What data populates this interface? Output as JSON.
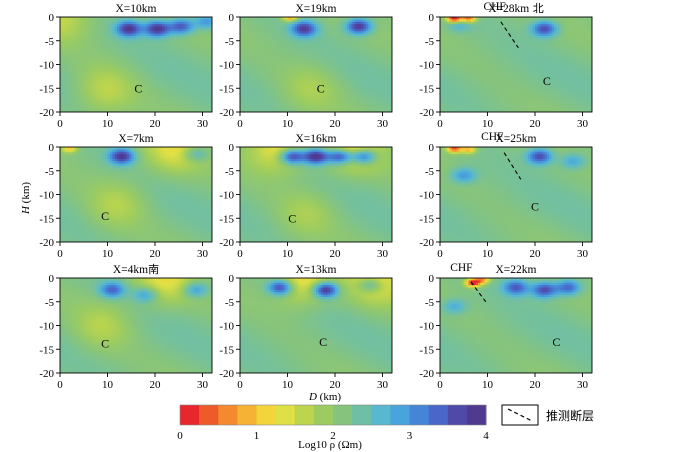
{
  "figure": {
    "ylabel_var": "H",
    "ylabel_unit": " (km)",
    "xlabel_var": "D",
    "xlabel_unit": " (km)"
  },
  "chart_data": [
    {
      "type": "heatmap",
      "title": "X=10km",
      "xlim": [
        0,
        32
      ],
      "ylim": [
        -20,
        0
      ],
      "x_ticks": [
        0,
        10,
        20,
        30
      ],
      "y_ticks": [
        0,
        -5,
        -10,
        -15,
        -20
      ],
      "zone_labels": [
        {
          "text": "C",
          "x": 16.5,
          "y": -15
        }
      ],
      "fault": null,
      "lows": [
        {
          "x": 14.5,
          "y": -2.5,
          "a": 1.8
        },
        {
          "x": 20.5,
          "y": -2.5,
          "a": 1.9
        },
        {
          "x": 25.5,
          "y": -2.0,
          "a": 1.5
        },
        {
          "x": 30.8,
          "y": -1.0,
          "a": 0.9
        }
      ],
      "highs": [
        {
          "x": 9.5,
          "y": -15.5,
          "a": 0.6
        },
        {
          "x": 0.5,
          "y": 0,
          "a": 0.6
        }
      ]
    },
    {
      "type": "heatmap",
      "title": "X=19km",
      "xlim": [
        0,
        32
      ],
      "ylim": [
        -20,
        0
      ],
      "x_ticks": [
        0,
        10,
        20,
        30
      ],
      "y_ticks": [
        0,
        -5,
        -10,
        -15,
        -20
      ],
      "zone_labels": [
        {
          "text": "C",
          "x": 17,
          "y": -15
        }
      ],
      "fault": null,
      "lows": [
        {
          "x": 13.5,
          "y": -2.5,
          "a": 1.7
        },
        {
          "x": 25,
          "y": -2.0,
          "a": 1.9
        }
      ],
      "highs": [
        {
          "x": 10.5,
          "y": 0,
          "a": 1.6
        },
        {
          "x": 15,
          "y": -15,
          "a": 0.4
        }
      ]
    },
    {
      "type": "heatmap",
      "title": "X=28km",
      "title_suffix": " 北",
      "xlim": [
        0,
        32
      ],
      "ylim": [
        -20,
        0
      ],
      "x_ticks": [
        0,
        10,
        20,
        30
      ],
      "y_ticks": [
        0,
        -5,
        -10,
        -15,
        -20
      ],
      "zone_labels": [
        {
          "text": "C",
          "x": 22.5,
          "y": -13.5
        }
      ],
      "fault": {
        "label": "CHF",
        "x1": 12.8,
        "y1": -1.0,
        "x2": 16.5,
        "y2": -6.5,
        "label_x": 11.5,
        "label_y": 1.5
      },
      "lows": [
        {
          "x": 22,
          "y": -2.5,
          "a": 1.6
        },
        {
          "x": 4,
          "y": -1.5,
          "a": 0.6
        }
      ],
      "highs": [
        {
          "x": 3,
          "y": -0.3,
          "a": 2.6
        },
        {
          "x": 6,
          "y": -0.3,
          "a": 2.0
        }
      ]
    },
    {
      "type": "heatmap",
      "title": "X=7km",
      "xlim": [
        0,
        32
      ],
      "ylim": [
        -20,
        0
      ],
      "x_ticks": [
        0,
        10,
        20,
        30
      ],
      "y_ticks": [
        0,
        -5,
        -10,
        -15,
        -20
      ],
      "zone_labels": [
        {
          "text": "C",
          "x": 9.5,
          "y": -14.5
        }
      ],
      "fault": null,
      "lows": [
        {
          "x": 13,
          "y": -2.0,
          "a": 1.8
        },
        {
          "x": 28.5,
          "y": -1.5,
          "a": 0.8
        }
      ],
      "highs": [
        {
          "x": 2,
          "y": -0.3,
          "a": 1.2
        },
        {
          "x": 24,
          "y": -0.3,
          "a": 0.8
        },
        {
          "x": 12,
          "y": -12,
          "a": 0.5
        }
      ]
    },
    {
      "type": "heatmap",
      "title": "X=16km",
      "xlim": [
        0,
        32
      ],
      "ylim": [
        -20,
        0
      ],
      "x_ticks": [
        0,
        10,
        20,
        30
      ],
      "y_ticks": [
        0,
        -5,
        -10,
        -15,
        -20
      ],
      "zone_labels": [
        {
          "text": "C",
          "x": 11,
          "y": -15
        }
      ],
      "fault": null,
      "lows": [
        {
          "x": 11,
          "y": -2.0,
          "a": 1.9
        },
        {
          "x": 16,
          "y": -2.0,
          "a": 2.1
        },
        {
          "x": 21,
          "y": -2.0,
          "a": 1.9
        },
        {
          "x": 26,
          "y": -2.0,
          "a": 1.7
        }
      ],
      "highs": [
        {
          "x": 8,
          "y": 0,
          "a": 1.0
        },
        {
          "x": 24,
          "y": 0,
          "a": 1.0
        },
        {
          "x": 14,
          "y": -14,
          "a": 0.4
        }
      ]
    },
    {
      "type": "heatmap",
      "title": "X=25km",
      "xlim": [
        0,
        32
      ],
      "ylim": [
        -20,
        0
      ],
      "x_ticks": [
        0,
        10,
        20,
        30
      ],
      "y_ticks": [
        0,
        -5,
        -10,
        -15,
        -20
      ],
      "zone_labels": [
        {
          "text": "C",
          "x": 20,
          "y": -12.5
        }
      ],
      "fault": {
        "label": "CHF",
        "x1": 13.5,
        "y1": -1.2,
        "x2": 17,
        "y2": -6.8,
        "label_x": 11,
        "label_y": 1.5
      },
      "lows": [
        {
          "x": 21,
          "y": -2.0,
          "a": 1.6
        },
        {
          "x": 5,
          "y": -6,
          "a": 0.9
        },
        {
          "x": 28,
          "y": -3,
          "a": 0.8
        }
      ],
      "highs": [
        {
          "x": 3,
          "y": -0.3,
          "a": 2.0
        },
        {
          "x": 6,
          "y": -0.5,
          "a": 1.4
        }
      ]
    },
    {
      "type": "heatmap",
      "title": "X=4km",
      "title_suffix": "南",
      "xlim": [
        0,
        32
      ],
      "ylim": [
        -20,
        0
      ],
      "x_ticks": [
        0,
        10,
        20,
        30
      ],
      "y_ticks": [
        0,
        -5,
        -10,
        -15,
        -20
      ],
      "zone_labels": [
        {
          "text": "C",
          "x": 9.5,
          "y": -13.8
        }
      ],
      "fault": null,
      "lows": [
        {
          "x": 11,
          "y": -2.5,
          "a": 1.3
        },
        {
          "x": 18,
          "y": -3.5,
          "a": 0.9
        },
        {
          "x": 28.5,
          "y": -2.5,
          "a": 1.0
        }
      ],
      "highs": [
        {
          "x": 9,
          "y": -10,
          "a": 0.5
        },
        {
          "x": 22,
          "y": -0.3,
          "a": 0.8
        }
      ]
    },
    {
      "type": "heatmap",
      "title": "X=13km",
      "xlim": [
        0,
        32
      ],
      "ylim": [
        -20,
        0
      ],
      "x_ticks": [
        0,
        10,
        20,
        30
      ],
      "y_ticks": [
        0,
        -5,
        -10,
        -15,
        -20
      ],
      "zone_labels": [
        {
          "text": "C",
          "x": 17.5,
          "y": -13.5
        }
      ],
      "fault": null,
      "lows": [
        {
          "x": 8.5,
          "y": -2.0,
          "a": 1.8
        },
        {
          "x": 18,
          "y": -2.5,
          "a": 2.1
        },
        {
          "x": 27.5,
          "y": -1.5,
          "a": 1.0
        }
      ],
      "highs": [
        {
          "x": 13,
          "y": -0.3,
          "a": 1.0
        },
        {
          "x": 29,
          "y": -0.3,
          "a": 0.9
        }
      ]
    },
    {
      "type": "heatmap",
      "title": "X=22km",
      "xlim": [
        0,
        32
      ],
      "ylim": [
        -20,
        0
      ],
      "x_ticks": [
        0,
        10,
        20,
        30
      ],
      "y_ticks": [
        0,
        -5,
        -10,
        -15,
        -20
      ],
      "zone_labels": [
        {
          "text": "C",
          "x": 24.5,
          "y": -13.5
        }
      ],
      "fault": {
        "label": "CHF",
        "x1": 6.5,
        "y1": -0.8,
        "x2": 10,
        "y2": -5.5,
        "label_x": 4.5,
        "label_y": 1.5
      },
      "lows": [
        {
          "x": 16,
          "y": -2.0,
          "a": 1.4
        },
        {
          "x": 22,
          "y": -2.5,
          "a": 1.6
        },
        {
          "x": 27,
          "y": -2.0,
          "a": 1.4
        },
        {
          "x": 3,
          "y": -6,
          "a": 0.7
        }
      ],
      "highs": [
        {
          "x": 7,
          "y": -1.0,
          "a": 2.4
        },
        {
          "x": 9,
          "y": -0.3,
          "a": 1.5
        }
      ]
    }
  ],
  "colorbar": {
    "label": "Log10 ρ (Ωm)",
    "min": 0,
    "max": 4,
    "ticks": [
      0,
      1,
      2,
      3,
      4
    ],
    "colors": [
      "#e8272c",
      "#ef5a2a",
      "#f38a2e",
      "#f6b235",
      "#f2d53b",
      "#dfe045",
      "#bcd44e",
      "#9ccc60",
      "#86c47e",
      "#6fbfa6",
      "#58b8cf",
      "#49a3dc",
      "#4585d6",
      "#4a66c8",
      "#4f4aa8",
      "#4f3a90"
    ]
  },
  "legend": {
    "fault_label": "推测断层"
  }
}
